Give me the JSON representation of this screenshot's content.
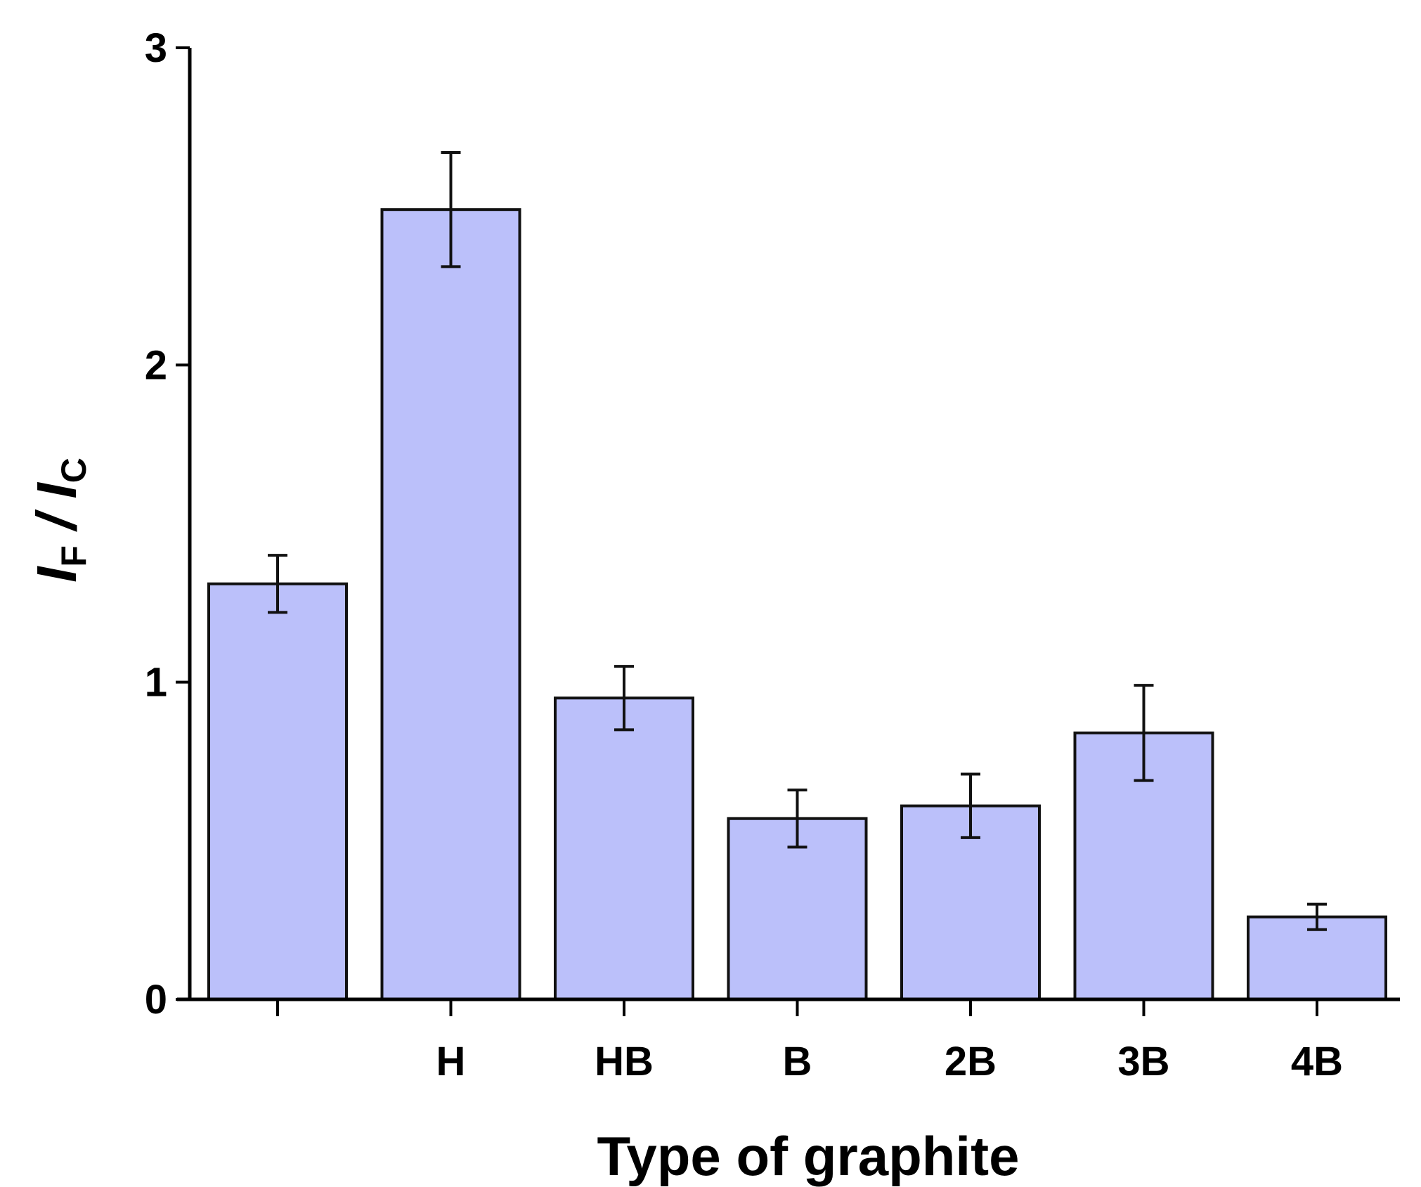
{
  "chart_data": {
    "type": "bar",
    "categories": [
      "",
      "H",
      "HB",
      "B",
      "2B",
      "3B",
      "4B"
    ],
    "values": [
      1.31,
      2.49,
      0.95,
      0.57,
      0.61,
      0.84,
      0.26
    ],
    "errors": [
      0.09,
      0.18,
      0.1,
      0.09,
      0.1,
      0.15,
      0.04
    ],
    "xlabel": "Type of graphite",
    "ylabel": {
      "main1": "I",
      "sub1": "F",
      "sep": " / ",
      "main2": "I",
      "sub2": "C"
    },
    "ylim": [
      0,
      3
    ],
    "yticks": [
      "0",
      "1",
      "2",
      "3"
    ],
    "grid": false,
    "bar_color": "#bbc0fa",
    "bar_edge_color": "#111111"
  }
}
